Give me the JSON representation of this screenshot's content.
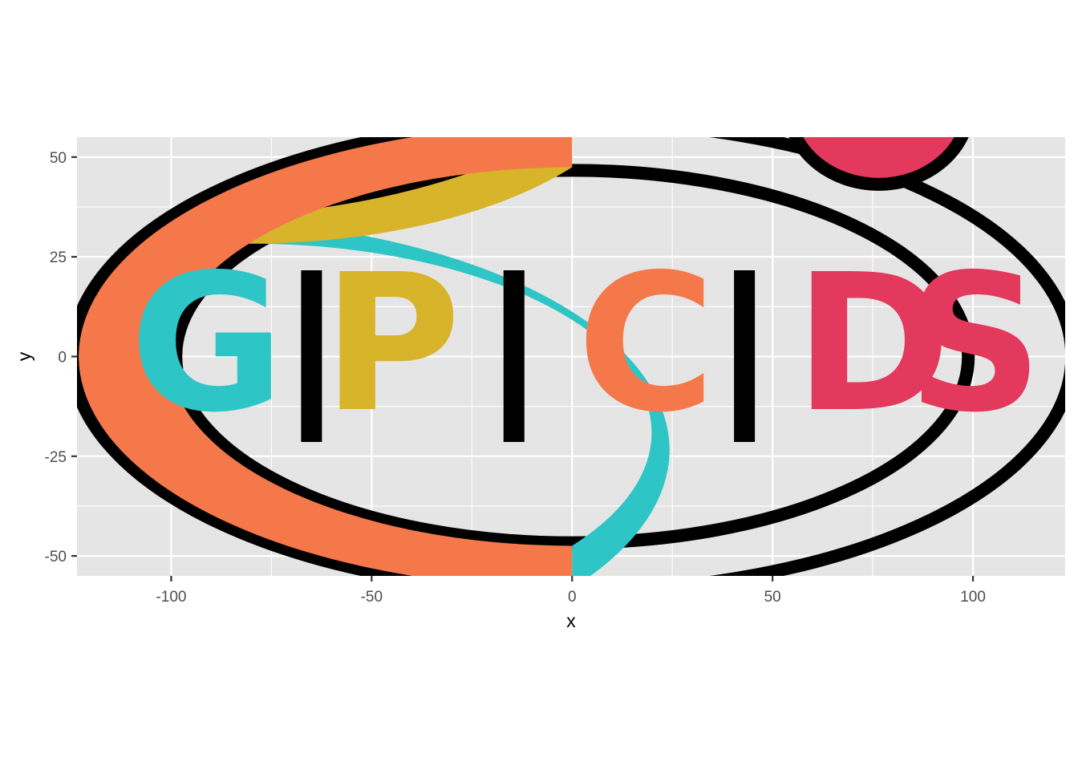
{
  "chart_data": {
    "type": "scatter",
    "title": "",
    "xlabel": "x",
    "ylabel": "y",
    "xlim": [
      -123.5,
      123
    ],
    "ylim": [
      -55,
      55
    ],
    "x_ticks": [
      -100,
      -50,
      0,
      50,
      100
    ],
    "y_ticks": [
      50,
      25,
      0,
      -25,
      -50
    ],
    "x_tick_labels": [
      "-100",
      "-50",
      "0",
      "50",
      "100"
    ],
    "y_tick_labels": [
      "50",
      "25",
      "0",
      "-25",
      "-50"
    ],
    "grid": true,
    "panel_background": "#e5e5e5",
    "grid_color": "#ffffff",
    "letters": [
      {
        "text": "G",
        "x": -91,
        "y": 0,
        "color": "#2ec5c6"
      },
      {
        "text": "I",
        "x": -65,
        "y": 0,
        "color": "#000000"
      },
      {
        "text": "P",
        "x": -45,
        "y": 0,
        "color": "#d8b42b"
      },
      {
        "text": "I",
        "x": -14.5,
        "y": 0,
        "color": "#000000"
      },
      {
        "text": "C",
        "x": 18.5,
        "y": 0,
        "color": "#f5784b"
      },
      {
        "text": "I",
        "x": 43,
        "y": 0,
        "color": "#000000"
      },
      {
        "text": "D",
        "x": 75,
        "y": 0,
        "color": "#e3395d"
      },
      {
        "text": "S",
        "x": 100.5,
        "y": 0,
        "color": "#e3395d"
      }
    ],
    "arcs": [
      {
        "color": "#2ec5c6",
        "side": "left",
        "from_y": -55,
        "to_y": 31.5
      },
      {
        "color": "#d8b42b",
        "side": "left",
        "from_y": 31.5,
        "to_y": 55
      },
      {
        "color": "#f5784b",
        "side": "right",
        "from_y": -55,
        "to_y": 55
      }
    ],
    "circle": {
      "color": "#e3395d",
      "cx": 76.5,
      "cy": 55,
      "r": 13
    }
  }
}
